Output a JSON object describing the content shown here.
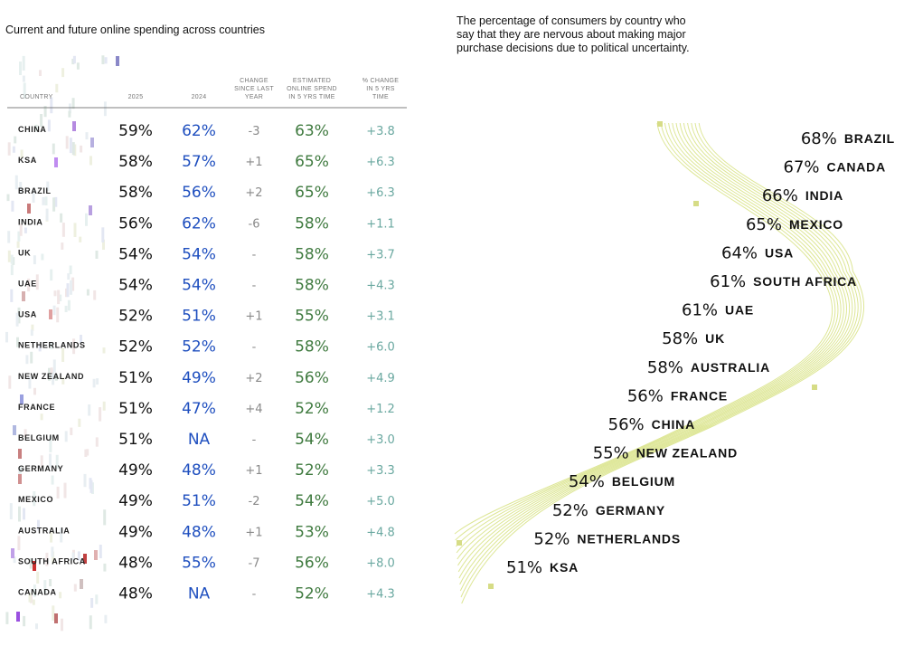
{
  "left_title": "Current and future online spending across countries",
  "right_title": "The percentage of consumers by country who say that they are nervous about making major purchase decisions due to political uncertainty.",
  "colors": {
    "c2025": "#111111",
    "c2024": "#1f4fbf",
    "change": "#8a8a8a",
    "est": "#3f7a3f",
    "pct5": "#6aa8a0",
    "wave": "#d4e07a"
  },
  "chart_data": [
    {
      "type": "table",
      "title": "Current and future online spending across countries",
      "columns": [
        "COUNTRY",
        "2025",
        "2024",
        "CHANGE SINCE LAST YEAR",
        "ESTIMATED ONLINE SPEND IN 5 YRS TIME",
        "% CHANGE IN 5 YRS TIME"
      ],
      "header_lines": [
        [
          "COUNTRY"
        ],
        [
          "2025"
        ],
        [
          "2024"
        ],
        [
          "CHANGE",
          "SINCE LAST",
          "YEAR"
        ],
        [
          "ESTIMATED",
          "ONLINE SPEND",
          "IN 5 YRS TIME"
        ],
        [
          "% CHANGE",
          "IN 5 YRS",
          "TIME"
        ]
      ],
      "rows": [
        {
          "country": "CHINA",
          "y2025": "59%",
          "y2024": "62%",
          "change": "-3",
          "est": "63%",
          "pct5": "+3.8"
        },
        {
          "country": "KSA",
          "y2025": "58%",
          "y2024": "57%",
          "change": "+1",
          "est": "65%",
          "pct5": "+6.3"
        },
        {
          "country": "BRAZIL",
          "y2025": "58%",
          "y2024": "56%",
          "change": "+2",
          "est": "65%",
          "pct5": "+6.3"
        },
        {
          "country": "INDIA",
          "y2025": "56%",
          "y2024": "62%",
          "change": "-6",
          "est": "58%",
          "pct5": "+1.1"
        },
        {
          "country": "UK",
          "y2025": "54%",
          "y2024": "54%",
          "change": "-",
          "est": "58%",
          "pct5": "+3.7"
        },
        {
          "country": "UAE",
          "y2025": "54%",
          "y2024": "54%",
          "change": "-",
          "est": "58%",
          "pct5": "+4.3"
        },
        {
          "country": "USA",
          "y2025": "52%",
          "y2024": "51%",
          "change": "+1",
          "est": "55%",
          "pct5": "+3.1"
        },
        {
          "country": "NETHERLANDS",
          "y2025": "52%",
          "y2024": "52%",
          "change": "-",
          "est": "58%",
          "pct5": "+6.0"
        },
        {
          "country": "NEW ZEALAND",
          "y2025": "51%",
          "y2024": "49%",
          "change": "+2",
          "est": "56%",
          "pct5": "+4.9"
        },
        {
          "country": "FRANCE",
          "y2025": "51%",
          "y2024": "47%",
          "change": "+4",
          "est": "52%",
          "pct5": "+1.2"
        },
        {
          "country": "BELGIUM",
          "y2025": "51%",
          "y2024": "NA",
          "change": "-",
          "est": "54%",
          "pct5": "+3.0"
        },
        {
          "country": "GERMANY",
          "y2025": "49%",
          "y2024": "48%",
          "change": "+1",
          "est": "52%",
          "pct5": "+3.3"
        },
        {
          "country": "MEXICO",
          "y2025": "49%",
          "y2024": "51%",
          "change": "-2",
          "est": "54%",
          "pct5": "+5.0"
        },
        {
          "country": "AUSTRALIA",
          "y2025": "49%",
          "y2024": "48%",
          "change": "+1",
          "est": "53%",
          "pct5": "+4.8"
        },
        {
          "country": "SOUTH AFRICA",
          "y2025": "48%",
          "y2024": "55%",
          "change": "-7",
          "est": "56%",
          "pct5": "+8.0"
        },
        {
          "country": "CANADA",
          "y2025": "48%",
          "y2024": "NA",
          "change": "-",
          "est": "52%",
          "pct5": "+4.3"
        }
      ]
    },
    {
      "type": "ranking",
      "title": "The percentage of consumers by country who say that they are nervous about making major purchase decisions due to political uncertainty.",
      "items": [
        {
          "pct": "68%",
          "country": "BRAZIL"
        },
        {
          "pct": "67%",
          "country": "CANADA"
        },
        {
          "pct": "66%",
          "country": "INDIA"
        },
        {
          "pct": "65%",
          "country": "MEXICO"
        },
        {
          "pct": "64%",
          "country": "USA"
        },
        {
          "pct": "61%",
          "country": "SOUTH AFRICA"
        },
        {
          "pct": "61%",
          "country": "UAE"
        },
        {
          "pct": "58%",
          "country": "UK"
        },
        {
          "pct": "58%",
          "country": "AUSTRALIA"
        },
        {
          "pct": "56%",
          "country": "FRANCE"
        },
        {
          "pct": "56%",
          "country": "CHINA"
        },
        {
          "pct": "55%",
          "country": "NEW ZEALAND"
        },
        {
          "pct": "54%",
          "country": "BELGIUM"
        },
        {
          "pct": "52%",
          "country": "GERMANY"
        },
        {
          "pct": "52%",
          "country": "NETHERLANDS"
        },
        {
          "pct": "51%",
          "country": "KSA"
        }
      ]
    }
  ]
}
